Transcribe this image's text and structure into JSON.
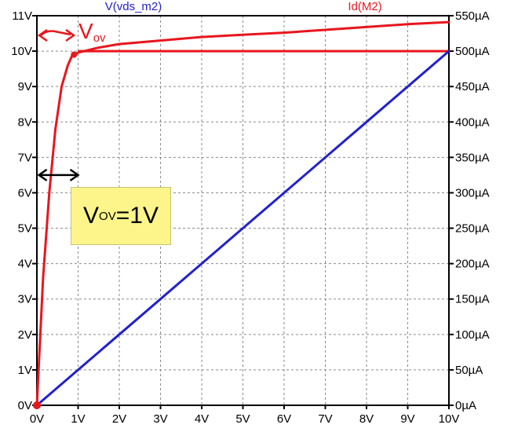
{
  "chart_data": {
    "type": "line",
    "series": [
      {
        "name": "V(vds_m2)",
        "color": "#2222cc",
        "axis": "left",
        "x": [
          0,
          1,
          2,
          3,
          4,
          5,
          6,
          7,
          8,
          9,
          10
        ],
        "y": [
          0,
          1,
          2,
          3,
          4,
          5,
          6,
          7,
          8,
          9,
          10
        ]
      },
      {
        "name": "Id(M2)",
        "color": "#e8161d",
        "axis": "right",
        "x": [
          0,
          0.05,
          0.15,
          0.3,
          0.45,
          0.6,
          0.75,
          0.85,
          1.0,
          1.5,
          2,
          3,
          4,
          5,
          6,
          7,
          8,
          9,
          10
        ],
        "y": [
          0,
          60,
          180,
          300,
          390,
          450,
          480,
          493,
          498,
          505,
          510,
          515,
          520,
          523,
          526,
          530,
          534,
          538,
          541
        ]
      }
    ],
    "reference_lines": [
      {
        "axis": "left",
        "y": 10,
        "color": "#e8161d"
      }
    ],
    "xlim": [
      0,
      10
    ],
    "ylim_left": [
      0,
      11
    ],
    "ylim_right": [
      0,
      550
    ],
    "x_ticks": [
      "0V",
      "1V",
      "2V",
      "3V",
      "4V",
      "5V",
      "6V",
      "7V",
      "8V",
      "9V",
      "10V"
    ],
    "y_ticks_left": [
      "0V",
      "1V",
      "2V",
      "3V",
      "4V",
      "5V",
      "6V",
      "7V",
      "8V",
      "9V",
      "10V",
      "11V"
    ],
    "y_ticks_right": [
      "0µA",
      "50µA",
      "100µA",
      "150µA",
      "200µA",
      "250µA",
      "300µA",
      "350µA",
      "400µA",
      "450µA",
      "500µA",
      "550µA"
    ],
    "grid": true,
    "annotations": {
      "box_main": "V",
      "box_sub": "OV",
      "box_rest": "=1V",
      "hand_main": "V",
      "hand_sub": "ov"
    }
  }
}
